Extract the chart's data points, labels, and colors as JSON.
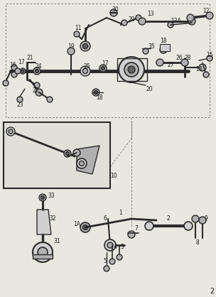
{
  "bg_color": "#e8e8e0",
  "fig_width": 3.04,
  "fig_height": 4.18,
  "dpi": 100,
  "page_number": "2",
  "line_color": "#2a2a2a",
  "text_color": "#1a1a1a",
  "gray_fill": "#b0b0b0",
  "light_fill": "#d0d0d0",
  "dark_fill": "#606060"
}
